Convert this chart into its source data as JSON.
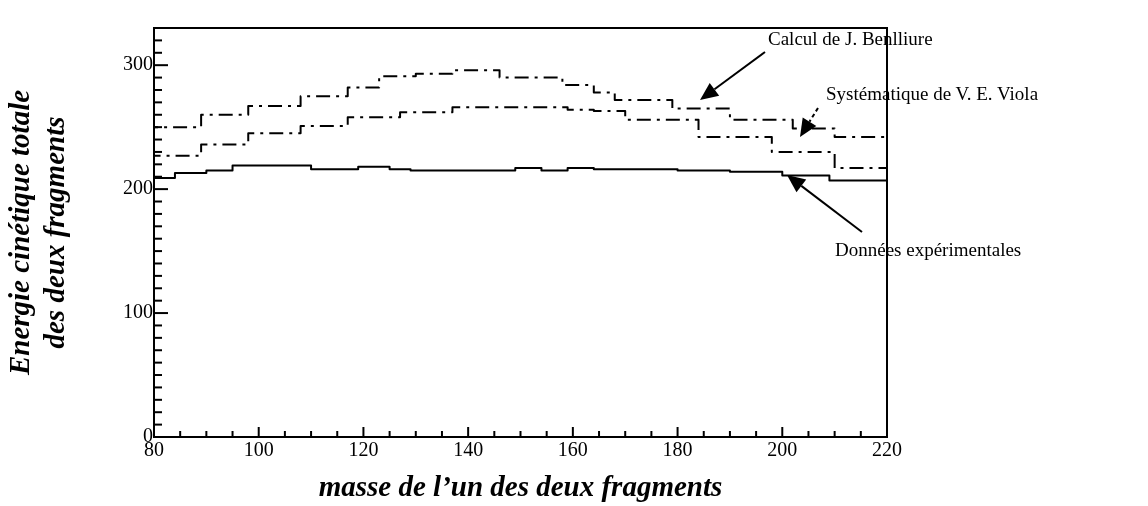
{
  "chart_data": {
    "type": "step",
    "xlabel": "masse de l’un des deux fragments",
    "ylabel": "Energie cinétique totale des deux fragments",
    "xlim": [
      80,
      220
    ],
    "ylim": [
      0,
      330
    ],
    "xticks": [
      80,
      {
        "value": 85,
        "label": null
      },
      {
        "value": 90,
        "label": null
      },
      {
        "value": 95,
        "label": null
      },
      100,
      {
        "value": 105,
        "label": null
      },
      {
        "value": 110,
        "label": null
      },
      {
        "value": 115,
        "label": null
      },
      120,
      {
        "value": 125,
        "label": null
      },
      {
        "value": 130,
        "label": null
      },
      {
        "value": 135,
        "label": null
      },
      140,
      {
        "value": 145,
        "label": null
      },
      {
        "value": 150,
        "label": null
      },
      {
        "value": 155,
        "label": null
      },
      160,
      {
        "value": 165,
        "label": null
      },
      {
        "value": 170,
        "label": null
      },
      {
        "value": 175,
        "label": null
      },
      180,
      {
        "value": 185,
        "label": null
      },
      {
        "value": 190,
        "label": null
      },
      {
        "value": 195,
        "label": null
      },
      200,
      {
        "value": 205,
        "label": null
      },
      {
        "value": 210,
        "label": null
      },
      {
        "value": 215,
        "label": null
      },
      220
    ],
    "yticks": [
      0,
      {
        "value": 10,
        "label": null
      },
      {
        "value": 20,
        "label": null
      },
      {
        "value": 30,
        "label": null
      },
      {
        "value": 40,
        "label": null
      },
      {
        "value": 50,
        "label": null
      },
      {
        "value": 60,
        "label": null
      },
      {
        "value": 70,
        "label": null
      },
      {
        "value": 80,
        "label": null
      },
      {
        "value": 90,
        "label": null
      },
      100,
      {
        "value": 110,
        "label": null
      },
      {
        "value": 120,
        "label": null
      },
      {
        "value": 130,
        "label": null
      },
      {
        "value": 140,
        "label": null
      },
      {
        "value": 150,
        "label": null
      },
      {
        "value": 160,
        "label": null
      },
      {
        "value": 170,
        "label": null
      },
      {
        "value": 180,
        "label": null
      },
      {
        "value": 190,
        "label": null
      },
      200,
      {
        "value": 210,
        "label": null
      },
      {
        "value": 220,
        "label": null
      },
      {
        "value": 230,
        "label": null
      },
      {
        "value": 240,
        "label": null
      },
      {
        "value": 250,
        "label": null
      },
      {
        "value": 260,
        "label": null
      },
      {
        "value": 270,
        "label": null
      },
      {
        "value": 280,
        "label": null
      },
      {
        "value": 290,
        "label": null
      },
      300,
      {
        "value": 310,
        "label": null
      },
      {
        "value": 320,
        "label": null
      }
    ],
    "grid": false,
    "legend": false,
    "series": [
      {
        "color": "#000000",
        "line_style": "solid",
        "x": [
          80,
          84,
          90,
          95,
          110,
          119,
          125,
          129,
          149,
          154,
          159,
          164,
          170,
          180,
          190,
          200,
          209,
          214,
          220
        ],
        "values": [
          210,
          209,
          213,
          215,
          219,
          216,
          218,
          216,
          215,
          217,
          215,
          217,
          216,
          216,
          215,
          214,
          211,
          207,
          207
        ]
      },
      {
        "color": "#000000",
        "line_style": "dashed",
        "x": [
          80,
          89,
          98,
          108,
          117,
          123,
          130,
          137,
          146,
          152,
          158,
          164,
          168,
          179,
          190,
          202,
          210,
          218,
          220
        ],
        "values": [
          242,
          250,
          260,
          267,
          275,
          282,
          291,
          293,
          296,
          290,
          290,
          284,
          278,
          272,
          265,
          256,
          249,
          242,
          242
        ]
      },
      {
        "color": "#000000",
        "line_style": "dashed",
        "x": [
          80,
          89,
          98,
          108,
          117,
          127,
          137,
          146,
          159,
          164,
          170,
          184,
          198,
          210,
          218,
          220
        ],
        "values": [
          221,
          227,
          236,
          245,
          251,
          258,
          262,
          266,
          266,
          264,
          263,
          256,
          242,
          230,
          217,
          217
        ]
      }
    ],
    "annotations": [
      "Calcul de J. Benlliure",
      "Systématique de V. E. Viola",
      "Données expérimentales"
    ]
  }
}
